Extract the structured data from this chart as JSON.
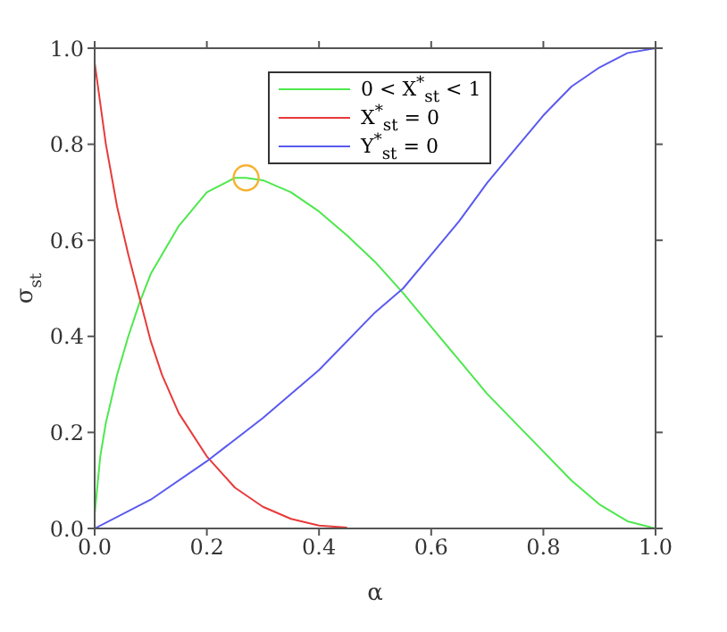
{
  "chart_data": {
    "type": "line",
    "xlabel": "α",
    "ylabel": "σ$_{st}$",
    "xlim": [
      0,
      1
    ],
    "ylim": [
      0,
      1
    ],
    "xticks": [
      {
        "value": 0,
        "label": "0.0"
      },
      0.2,
      0.4,
      0.6,
      0.8,
      {
        "value": 1,
        "label": "1.0"
      }
    ],
    "yticks": [
      {
        "value": 0,
        "label": "0.0"
      },
      0.2,
      0.4,
      0.6,
      0.8,
      {
        "value": 1,
        "label": "1.0"
      }
    ],
    "grid": false,
    "legend": "top",
    "marker": "none",
    "line_style": "solid",
    "series": [
      {
        "name": "0 < X$^{*}$$_{st}$ < 1",
        "color": "#4de84d",
        "x": [
          0,
          0.01,
          0.02,
          0.04,
          0.06,
          0.08,
          0.1,
          0.15,
          0.2,
          0.25,
          0.27,
          0.3,
          0.35,
          0.4,
          0.45,
          0.5,
          0.55,
          0.6,
          0.65,
          0.7,
          0.75,
          0.8,
          0.85,
          0.9,
          0.95,
          1
        ],
        "values": [
          0.03,
          0.15,
          0.22,
          0.32,
          0.4,
          0.47,
          0.53,
          0.63,
          0.7,
          0.73,
          0.73,
          0.725,
          0.7,
          0.66,
          0.61,
          0.555,
          0.49,
          0.42,
          0.35,
          0.28,
          0.22,
          0.16,
          0.1,
          0.05,
          0.015,
          0
        ]
      },
      {
        "name": "X$^{*}$$_{st}$ = 0",
        "color": "#e83a3a",
        "x": [
          0,
          0.02,
          0.04,
          0.06,
          0.08,
          0.1,
          0.12,
          0.15,
          0.2,
          0.25,
          0.3,
          0.35,
          0.4,
          0.45
        ],
        "values": [
          0.97,
          0.8,
          0.67,
          0.57,
          0.48,
          0.39,
          0.32,
          0.24,
          0.15,
          0.085,
          0.045,
          0.02,
          0.006,
          0.002
        ]
      },
      {
        "name": "Y$^{*}$$_{st}$ = 0",
        "color": "#5a5af0",
        "x": [
          0,
          0.1,
          0.2,
          0.3,
          0.4,
          0.5,
          0.55,
          0.6,
          0.65,
          0.7,
          0.75,
          0.8,
          0.85,
          0.9,
          0.95,
          1
        ],
        "values": [
          0,
          0.06,
          0.14,
          0.23,
          0.33,
          0.45,
          0.5,
          0.57,
          0.64,
          0.72,
          0.79,
          0.86,
          0.92,
          0.96,
          0.99,
          1
        ]
      },
      {
        "type": "scatter",
        "marker": "circle",
        "color": "#f5b230",
        "x": [
          0.27
        ],
        "values": [
          0.73
        ]
      }
    ]
  }
}
